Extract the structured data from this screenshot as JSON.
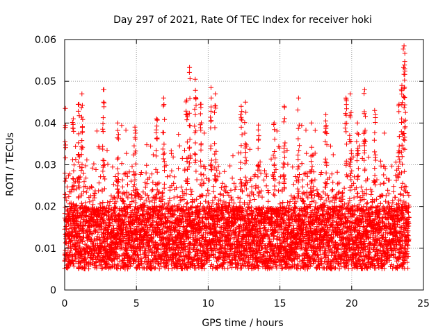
{
  "chart_data": {
    "type": "scatter",
    "title": "Day 297 of 2021, Rate Of TEC Index for receiver hoki",
    "xlabel": "GPS time / hours",
    "ylabel": "ROTI / TECUs",
    "xlim": [
      0,
      25
    ],
    "ylim": [
      0,
      0.06
    ],
    "x_ticks": [
      0,
      5,
      10,
      15,
      20,
      25
    ],
    "y_ticks": [
      0,
      0.01,
      0.02,
      0.03,
      0.04,
      0.05,
      0.06
    ],
    "x_tick_labels": [
      "0",
      "5",
      "10",
      "15",
      "20",
      "25"
    ],
    "y_tick_labels": [
      "0",
      "0.01",
      "0.02",
      "0.03",
      "0.04",
      "0.05",
      "0.06"
    ],
    "grid": true,
    "marker": "+",
    "marker_color": "#ff0000",
    "approx_point_count": 6000,
    "baseline_band": {
      "x_range": [
        0,
        24
      ],
      "y_range": [
        0.005,
        0.02
      ]
    },
    "peaks": [
      {
        "x": 0.05,
        "y": 0.0435
      },
      {
        "x": 0.6,
        "y": 0.041
      },
      {
        "x": 1.0,
        "y": 0.0445
      },
      {
        "x": 1.2,
        "y": 0.047
      },
      {
        "x": 2.7,
        "y": 0.048
      },
      {
        "x": 3.7,
        "y": 0.04
      },
      {
        "x": 4.9,
        "y": 0.039
      },
      {
        "x": 6.4,
        "y": 0.041
      },
      {
        "x": 6.9,
        "y": 0.046
      },
      {
        "x": 8.5,
        "y": 0.0455
      },
      {
        "x": 8.7,
        "y": 0.0533
      },
      {
        "x": 9.1,
        "y": 0.0505
      },
      {
        "x": 9.5,
        "y": 0.0445
      },
      {
        "x": 10.2,
        "y": 0.0485
      },
      {
        "x": 10.5,
        "y": 0.047
      },
      {
        "x": 12.3,
        "y": 0.044
      },
      {
        "x": 12.6,
        "y": 0.045
      },
      {
        "x": 13.5,
        "y": 0.0395
      },
      {
        "x": 14.6,
        "y": 0.04
      },
      {
        "x": 15.3,
        "y": 0.044
      },
      {
        "x": 16.3,
        "y": 0.046
      },
      {
        "x": 17.2,
        "y": 0.04
      },
      {
        "x": 18.2,
        "y": 0.042
      },
      {
        "x": 19.6,
        "y": 0.046
      },
      {
        "x": 19.9,
        "y": 0.047
      },
      {
        "x": 20.4,
        "y": 0.04
      },
      {
        "x": 20.9,
        "y": 0.048
      },
      {
        "x": 21.6,
        "y": 0.043
      },
      {
        "x": 23.3,
        "y": 0.0445
      },
      {
        "x": 23.5,
        "y": 0.049
      },
      {
        "x": 23.65,
        "y": 0.0585
      },
      {
        "x": 23.7,
        "y": 0.0567
      }
    ]
  }
}
